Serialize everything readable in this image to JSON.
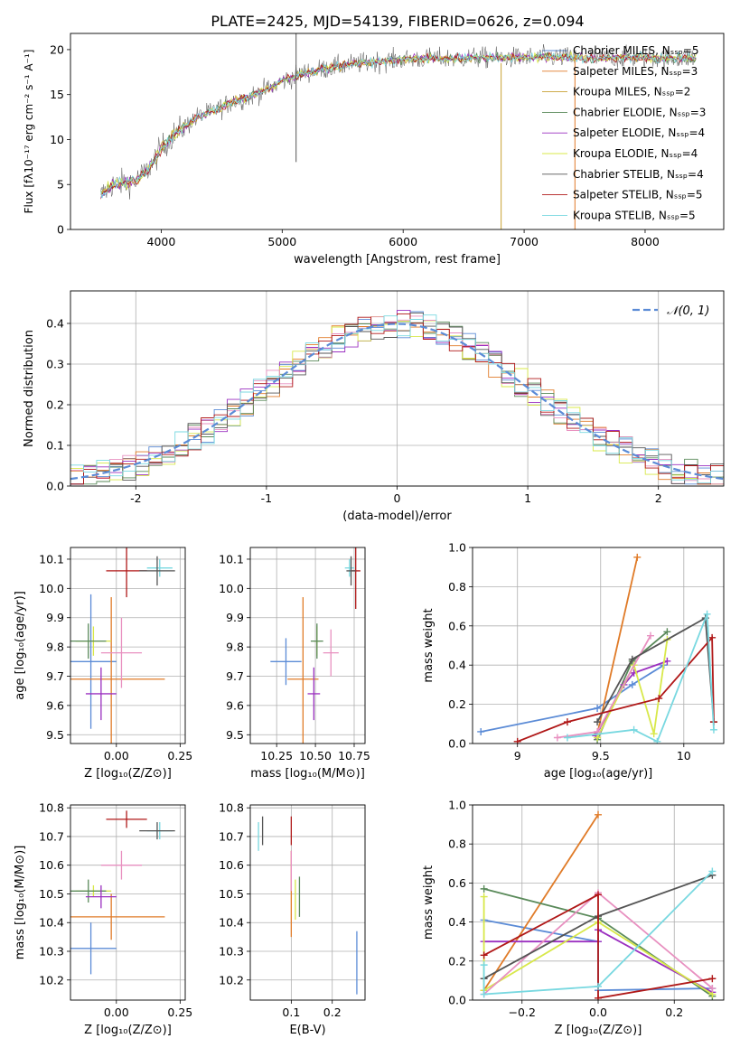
{
  "figure": {
    "title": "PLATE=2425, MJD=54139, FIBERID=0626, z=0.094"
  },
  "colors": {
    "Chabrier MILES": "#5b8bd6",
    "Salpeter MILES": "#e07b28",
    "Kroupa MILES": "#c8a032",
    "Chabrier ELODIE": "#5a8a5a",
    "Salpeter ELODIE": "#9b30c0",
    "Kroupa ELODIE": "#d8e84a",
    "Chabrier STELIB": "#555555",
    "Salpeter STELIB": "#b01818",
    "Kroupa STELIB": "#78d8e0",
    "pink": "#e890c0",
    "normal": "#5b8bd6"
  },
  "chart_data": [
    {
      "id": "spectrum",
      "type": "line",
      "title": "PLATE=2425, MJD=54139, FIBERID=0626, z=0.094",
      "xlabel": "wavelength [Angstrom, rest frame]",
      "ylabel": "Flux [fλ10⁻¹⁷ erg cm⁻² s⁻¹ A⁻¹]",
      "xlim": [
        3250,
        8650
      ],
      "ylim": [
        0,
        21.8
      ],
      "xticks": [
        4000,
        5000,
        6000,
        7000,
        8000
      ],
      "yticks": [
        0,
        5,
        10,
        15,
        20
      ],
      "legend_position": "top-right",
      "legend": [
        "Chabrier MILES, Nₛₛₚ=5",
        "Salpeter MILES, Nₛₛₚ=3",
        "Kroupa MILES, Nₛₛₚ=2",
        "Chabrier ELODIE, Nₛₛₚ=3",
        "Salpeter ELODIE, Nₛₛₚ=4",
        "Kroupa ELODIE, Nₛₛₚ=4",
        "Chabrier STELIB, Nₛₛₚ=4",
        "Salpeter STELIB, Nₛₛₚ=5",
        "Kroupa STELIB, Nₛₛₚ=5"
      ],
      "legend_keys": [
        "Chabrier MILES",
        "Salpeter MILES",
        "Kroupa MILES",
        "Chabrier ELODIE",
        "Salpeter ELODIE",
        "Kroupa ELODIE",
        "Chabrier STELIB",
        "Salpeter STELIB",
        "Kroupa STELIB"
      ],
      "continuum": {
        "x": [
          3500,
          3600,
          3700,
          3800,
          3900,
          4000,
          4100,
          4200,
          4300,
          4400,
          4500,
          4600,
          4700,
          4800,
          4900,
          5000,
          5200,
          5400,
          5600,
          5800,
          6000,
          6200,
          6400,
          6600,
          6800,
          7000,
          7200,
          7400,
          7600,
          7800,
          8000,
          8200,
          8400
        ],
        "y": [
          3.8,
          5.0,
          5.2,
          5.5,
          6.8,
          9.0,
          10.5,
          11.5,
          12.5,
          13.0,
          13.6,
          14.3,
          14.6,
          15.2,
          15.7,
          16.5,
          17.5,
          18.0,
          18.4,
          18.7,
          18.9,
          19.0,
          19.0,
          19.1,
          19.1,
          19.1,
          19.2,
          19.1,
          19.0,
          19.1,
          19.1,
          19.0,
          19.1
        ]
      },
      "spikes": [
        {
          "x": 5115,
          "y": [
            7.5,
            23
          ]
        },
        {
          "x": 6810,
          "y": [
            0,
            18.5
          ]
        },
        {
          "x": 7420,
          "y": [
            0,
            19.5
          ]
        }
      ]
    },
    {
      "id": "residuals",
      "type": "histogram",
      "xlabel": "(data-model)/error",
      "ylabel": "Normed distribution",
      "xlim": [
        -2.5,
        2.5
      ],
      "ylim": [
        0,
        0.48
      ],
      "xticks": [
        -2,
        -1,
        0,
        1,
        2
      ],
      "yticks": [
        0.0,
        0.1,
        0.2,
        0.3,
        0.4
      ],
      "grid": true,
      "legend": [
        "𝒩(0, 1)"
      ],
      "legend_position": "top-right",
      "bin_width": 0.1,
      "bins_start": -2.5
    },
    {
      "id": "age_vs_Z",
      "type": "errorbar",
      "xlabel": "Z [log₁₀(Z/Z⊙)]",
      "ylabel": "age  [log₁₀(age/yr)]",
      "xlim": [
        -0.18,
        0.27
      ],
      "ylim": [
        9.47,
        10.14
      ],
      "xticks": [
        0.0,
        0.25
      ],
      "xticklabels": [
        "0.00",
        "0.25"
      ],
      "yticks": [
        9.5,
        9.6,
        9.7,
        9.8,
        9.9,
        10.0,
        10.1
      ],
      "points": [
        {
          "c": "Chabrier MILES",
          "x": -0.1,
          "xerr": 0.1,
          "y": 9.75,
          "yerr": 0.23
        },
        {
          "c": "Salpeter MILES",
          "x": -0.02,
          "xerr": 0.21,
          "y": 9.69,
          "yerr": 0.28
        },
        {
          "c": "Kroupa ELODIE",
          "x": -0.09,
          "xerr": 0.07,
          "y": 9.82,
          "yerr": 0.05
        },
        {
          "c": "Chabrier ELODIE",
          "x": -0.11,
          "xerr": 0.07,
          "y": 9.82,
          "yerr": 0.06
        },
        {
          "c": "Salpeter ELODIE",
          "x": -0.06,
          "xerr": 0.06,
          "y": 9.64,
          "yerr": 0.09
        },
        {
          "c": "pink",
          "x": 0.02,
          "xerr": 0.08,
          "y": 9.78,
          "yerr": 0.12
        },
        {
          "c": "Salpeter STELIB",
          "x": 0.04,
          "xerr": 0.08,
          "y": 10.06,
          "yerr": 0.09
        },
        {
          "c": "Kroupa STELIB",
          "x": 0.17,
          "xerr": 0.05,
          "y": 10.07,
          "yerr": 0.03
        },
        {
          "c": "Chabrier STELIB",
          "x": 0.16,
          "xerr": 0.07,
          "y": 10.06,
          "yerr": 0.05
        }
      ]
    },
    {
      "id": "age_vs_mass",
      "type": "errorbar",
      "xlabel": "mass [log₁₀(M/M⊙)]",
      "ylabel": "",
      "xlim": [
        10.08,
        10.82
      ],
      "ylim": [
        9.47,
        10.14
      ],
      "xticks": [
        10.25,
        10.5,
        10.75
      ],
      "xticklabels": [
        "10.25",
        "10.50",
        "10.75"
      ],
      "yticks": [
        9.5,
        9.6,
        9.7,
        9.8,
        9.9,
        10.0,
        10.1
      ],
      "points": [
        {
          "c": "Chabrier MILES",
          "x": 10.31,
          "xerr": 0.1,
          "y": 9.75,
          "yerr": 0.08
        },
        {
          "c": "Salpeter MILES",
          "x": 10.42,
          "xerr": 0.1,
          "y": 9.69,
          "yerr": 0.28
        },
        {
          "c": "Kroupa ELODIE",
          "x": 10.51,
          "xerr": 0.02,
          "y": 9.82,
          "yerr": 0.05
        },
        {
          "c": "Chabrier ELODIE",
          "x": 10.51,
          "xerr": 0.04,
          "y": 9.82,
          "yerr": 0.06
        },
        {
          "c": "Salpeter ELODIE",
          "x": 10.49,
          "xerr": 0.04,
          "y": 9.64,
          "yerr": 0.09
        },
        {
          "c": "pink",
          "x": 10.6,
          "xerr": 0.05,
          "y": 9.78,
          "yerr": 0.08
        },
        {
          "c": "Salpeter STELIB",
          "x": 10.76,
          "xerr": 0.03,
          "y": 10.06,
          "yerr": 0.13
        },
        {
          "c": "Kroupa STELIB",
          "x": 10.72,
          "xerr": 0.03,
          "y": 10.07,
          "yerr": 0.03
        },
        {
          "c": "Chabrier STELIB",
          "x": 10.73,
          "xerr": 0.03,
          "y": 10.06,
          "yerr": 0.05
        }
      ]
    },
    {
      "id": "weight_vs_age",
      "type": "line",
      "xlabel": "age  [log₁₀(age/yr)]",
      "ylabel": "mass weight",
      "xlim": [
        8.73,
        10.24
      ],
      "ylim": [
        0,
        1.0
      ],
      "xticks": [
        9.0,
        9.5,
        10.0
      ],
      "yticks": [
        0.0,
        0.2,
        0.4,
        0.6,
        0.8,
        1.0
      ],
      "series": [
        {
          "c": "Chabrier MILES",
          "x": [
            8.78,
            9.48,
            9.69,
            9.88
          ],
          "y": [
            0.06,
            0.18,
            0.3,
            0.4
          ]
        },
        {
          "c": "Salpeter MILES",
          "x": [
            9.48,
            9.72
          ],
          "y": [
            0.05,
            0.95
          ]
        },
        {
          "c": "Chabrier ELODIE",
          "x": [
            9.48,
            9.69,
            9.9
          ],
          "y": [
            0.02,
            0.42,
            0.57
          ]
        },
        {
          "c": "Salpeter ELODIE",
          "x": [
            9.47,
            9.64,
            9.7,
            9.9
          ],
          "y": [
            0.04,
            0.3,
            0.36,
            0.42
          ]
        },
        {
          "c": "Kroupa ELODIE",
          "x": [
            9.48,
            9.7,
            9.82,
            9.9
          ],
          "y": [
            0.03,
            0.4,
            0.05,
            0.53
          ]
        },
        {
          "c": "pink",
          "x": [
            9.24,
            9.48,
            9.8
          ],
          "y": [
            0.03,
            0.06,
            0.55
          ]
        },
        {
          "c": "Chabrier STELIB",
          "x": [
            9.48,
            9.69,
            10.13,
            10.18
          ],
          "y": [
            0.11,
            0.43,
            0.64,
            0.11
          ]
        },
        {
          "c": "Salpeter STELIB",
          "x": [
            9.0,
            9.3,
            9.85,
            10.17,
            10.18
          ],
          "y": [
            0.01,
            0.11,
            0.23,
            0.54,
            0.11
          ]
        },
        {
          "c": "Kroupa STELIB",
          "x": [
            9.3,
            9.7,
            9.84,
            10.14,
            10.18
          ],
          "y": [
            0.03,
            0.07,
            0.01,
            0.66,
            0.07
          ]
        }
      ]
    },
    {
      "id": "mass_vs_Z",
      "type": "errorbar",
      "xlabel": "Z [log₁₀(Z/Z⊙)]",
      "ylabel": "mass [log₁₀(M/M⊙)]",
      "xlim": [
        -0.18,
        0.27
      ],
      "ylim": [
        10.13,
        10.81
      ],
      "xticks": [
        0.0,
        0.25
      ],
      "xticklabels": [
        "0.00",
        "0.25"
      ],
      "yticks": [
        10.2,
        10.3,
        10.4,
        10.5,
        10.6,
        10.7,
        10.8
      ],
      "points": [
        {
          "c": "Chabrier MILES",
          "x": -0.1,
          "xerr": 0.1,
          "y": 10.31,
          "yerr": 0.09
        },
        {
          "c": "Salpeter MILES",
          "x": -0.02,
          "xerr": 0.21,
          "y": 10.42,
          "yerr": 0.08
        },
        {
          "c": "Kroupa ELODIE",
          "x": -0.09,
          "xerr": 0.07,
          "y": 10.51,
          "yerr": 0.02
        },
        {
          "c": "Chabrier ELODIE",
          "x": -0.11,
          "xerr": 0.07,
          "y": 10.51,
          "yerr": 0.04
        },
        {
          "c": "Salpeter ELODIE",
          "x": -0.06,
          "xerr": 0.06,
          "y": 10.49,
          "yerr": 0.04
        },
        {
          "c": "pink",
          "x": 0.02,
          "xerr": 0.08,
          "y": 10.6,
          "yerr": 0.05
        },
        {
          "c": "Salpeter STELIB",
          "x": 0.04,
          "xerr": 0.08,
          "y": 10.76,
          "yerr": 0.03
        },
        {
          "c": "Kroupa STELIB",
          "x": 0.17,
          "xerr": 0.05,
          "y": 10.72,
          "yerr": 0.03
        },
        {
          "c": "Chabrier STELIB",
          "x": 0.16,
          "xerr": 0.07,
          "y": 10.72,
          "yerr": 0.03
        }
      ]
    },
    {
      "id": "mass_vs_ebv",
      "type": "errorbar",
      "xlabel": "E(B-V)",
      "ylabel": "",
      "xlim": [
        0.0,
        0.28
      ],
      "ylim": [
        10.13,
        10.81
      ],
      "xticks": [
        0.1,
        0.2
      ],
      "xticklabels": [
        "0.1",
        "0.2"
      ],
      "yticks": [
        10.2,
        10.3,
        10.4,
        10.5,
        10.6,
        10.7,
        10.8
      ],
      "points": [
        {
          "c": "Chabrier MILES",
          "x": 0.26,
          "xerr": 0,
          "y": 10.26,
          "yerr": 0.11
        },
        {
          "c": "Salpeter MILES",
          "x": 0.1,
          "xerr": 0,
          "y": 10.5,
          "yerr": 0.15
        },
        {
          "c": "Kroupa ELODIE",
          "x": 0.11,
          "xerr": 0,
          "y": 10.48,
          "yerr": 0.07
        },
        {
          "c": "Chabrier ELODIE",
          "x": 0.12,
          "xerr": 0,
          "y": 10.49,
          "yerr": 0.07
        },
        {
          "c": "pink",
          "x": 0.1,
          "xerr": 0,
          "y": 10.58,
          "yerr": 0.07
        },
        {
          "c": "Salpeter STELIB",
          "x": 0.1,
          "xerr": 0,
          "y": 10.72,
          "yerr": 0.05
        },
        {
          "c": "Kroupa STELIB",
          "x": 0.02,
          "xerr": 0,
          "y": 10.7,
          "yerr": 0.05
        },
        {
          "c": "Chabrier STELIB",
          "x": 0.03,
          "xerr": 0,
          "y": 10.72,
          "yerr": 0.05
        }
      ]
    },
    {
      "id": "weight_vs_Z",
      "type": "line",
      "xlabel": "Z [log₁₀(Z/Z⊙)]",
      "ylabel": "mass weight",
      "xlim": [
        -0.33,
        0.33
      ],
      "ylim": [
        0,
        1.0
      ],
      "xticks": [
        -0.2,
        0.0,
        0.2
      ],
      "xticklabels": [
        "−0.2",
        "0.0",
        "0.2"
      ],
      "yticks": [
        0.0,
        0.2,
        0.4,
        0.6,
        0.8,
        1.0
      ],
      "series": [
        {
          "c": "Chabrier MILES",
          "x": [
            -0.3,
            0.0,
            0.0,
            0.3
          ],
          "y": [
            0.41,
            0.3,
            0.05,
            0.06
          ]
        },
        {
          "c": "Salpeter MILES",
          "x": [
            -0.3,
            0.0
          ],
          "y": [
            0.05,
            0.95
          ]
        },
        {
          "c": "Chabrier ELODIE",
          "x": [
            -0.3,
            0.0,
            0.3
          ],
          "y": [
            0.57,
            0.42,
            0.02
          ]
        },
        {
          "c": "Salpeter ELODIE",
          "x": [
            -0.3,
            0.0,
            0.0,
            0.3
          ],
          "y": [
            0.3,
            0.3,
            0.36,
            0.04
          ]
        },
        {
          "c": "Kroupa ELODIE",
          "x": [
            -0.3,
            -0.3,
            0.0,
            0.3
          ],
          "y": [
            0.53,
            0.05,
            0.4,
            0.03
          ]
        },
        {
          "c": "pink",
          "x": [
            -0.3,
            0.0,
            0.3
          ],
          "y": [
            0.03,
            0.55,
            0.06
          ]
        },
        {
          "c": "Chabrier STELIB",
          "x": [
            -0.3,
            0.0,
            0.3
          ],
          "y": [
            0.11,
            0.43,
            0.64
          ]
        },
        {
          "c": "Salpeter STELIB",
          "x": [
            -0.3,
            0.0,
            0.0,
            0.3
          ],
          "y": [
            0.23,
            0.54,
            0.01,
            0.11
          ]
        },
        {
          "c": "Kroupa STELIB",
          "x": [
            -0.3,
            -0.3,
            0.0,
            0.3
          ],
          "y": [
            0.18,
            0.03,
            0.07,
            0.66
          ]
        }
      ]
    }
  ]
}
